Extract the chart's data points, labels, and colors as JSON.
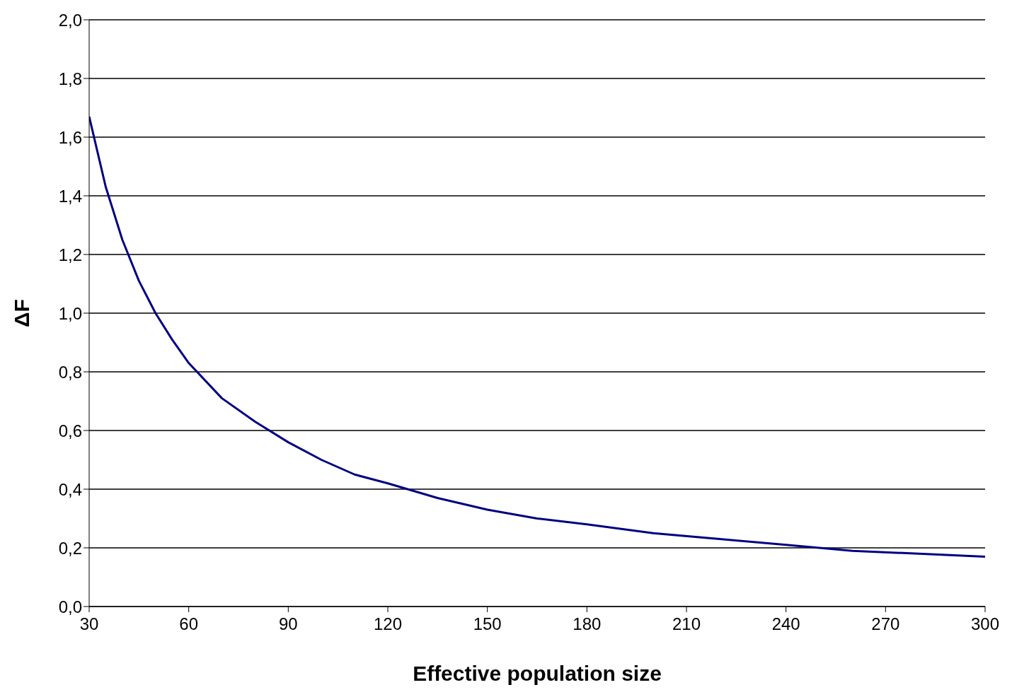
{
  "chart_data": {
    "type": "line",
    "xlabel": "Effective population size",
    "ylabel": "ΔF",
    "x": [
      30,
      35,
      40,
      45,
      50,
      55,
      60,
      70,
      80,
      90,
      100,
      110,
      120,
      135,
      150,
      165,
      180,
      200,
      220,
      240,
      260,
      280,
      300
    ],
    "series": [
      {
        "color": "#000080",
        "values": [
          1.67,
          1.43,
          1.25,
          1.11,
          1.0,
          0.91,
          0.83,
          0.71,
          0.63,
          0.56,
          0.5,
          0.45,
          0.42,
          0.37,
          0.33,
          0.3,
          0.28,
          0.25,
          0.23,
          0.21,
          0.19,
          0.18,
          0.17
        ]
      }
    ],
    "xlim": [
      30,
      300
    ],
    "xticks": [
      30,
      60,
      90,
      120,
      150,
      180,
      210,
      240,
      270,
      300
    ],
    "ylim": [
      0,
      2
    ],
    "yticks": [
      {
        "value": 0,
        "label": "0,0"
      },
      {
        "value": 0.2,
        "label": "0,2"
      },
      {
        "value": 0.4,
        "label": "0,4"
      },
      {
        "value": 0.6,
        "label": "0,6"
      },
      {
        "value": 0.8,
        "label": "0,8"
      },
      {
        "value": 1,
        "label": "1,0"
      },
      {
        "value": 1.2,
        "label": "1,2"
      },
      {
        "value": 1.4,
        "label": "1,4"
      },
      {
        "value": 1.6,
        "label": "1,6"
      },
      {
        "value": 1.8,
        "label": "1,8"
      },
      {
        "value": 2,
        "label": "2,0"
      }
    ],
    "grid": "y",
    "marker": "none",
    "line_style": "solid",
    "legend": false
  }
}
